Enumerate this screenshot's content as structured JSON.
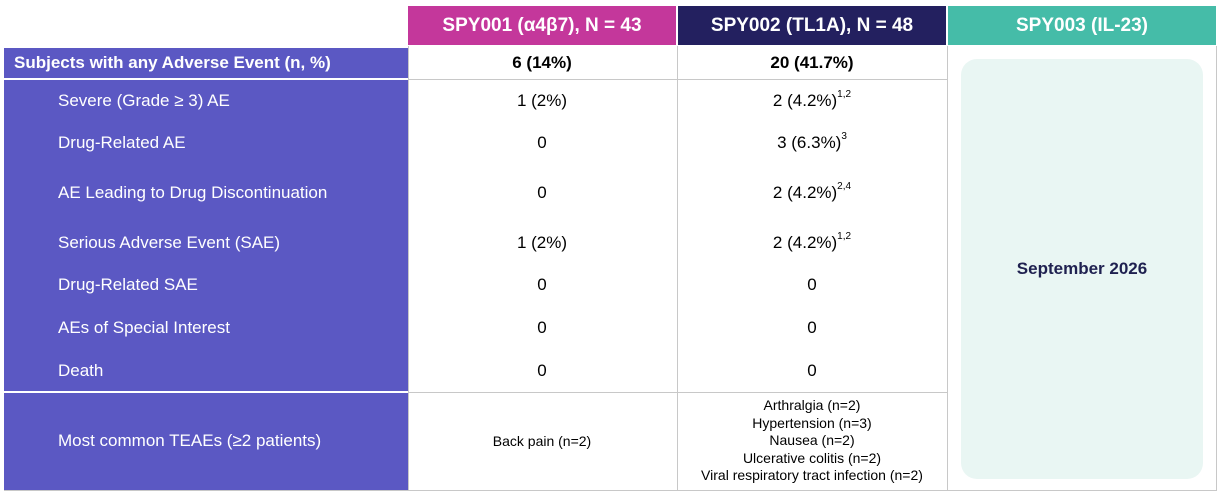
{
  "headers": {
    "spy001": "SPY001 (α4β7), N = 43",
    "spy002": "SPY002 (TL1A), N = 48",
    "spy003": "SPY003 (IL-23)"
  },
  "summary": {
    "label": "Subjects with any Adverse Event (n, %)",
    "spy001": "6 (14%)",
    "spy002": "20 (41.7%)"
  },
  "rows": [
    {
      "label": "Severe (Grade ≥ 3) AE",
      "spy001": "1 (2%)",
      "spy002": "2 (4.2%)",
      "spy002_sup": "1,2"
    },
    {
      "label": "Drug-Related AE",
      "spy001": "0",
      "spy002": "3 (6.3%)",
      "spy002_sup": "3"
    },
    {
      "label": "AE Leading to Drug Discontinuation",
      "spy001": "0",
      "spy002": "2 (4.2%)",
      "spy002_sup": "2,4"
    },
    {
      "label": "Serious Adverse Event (SAE)",
      "spy001": "1 (2%)",
      "spy002": "2 (4.2%)",
      "spy002_sup": "1,2"
    },
    {
      "label": "Drug-Related SAE",
      "spy001": "0",
      "spy002": "0"
    },
    {
      "label": "AEs of Special Interest",
      "spy001": "0",
      "spy002": "0"
    },
    {
      "label": "Death",
      "spy001": "0",
      "spy002": "0"
    }
  ],
  "teae": {
    "label": "Most common TEAEs (≥2 patients)",
    "spy001": "Back pain (n=2)",
    "spy002": [
      "Arthralgia (n=2)",
      "Hypertension (n=3)",
      "Nausea (n=2)",
      "Ulcerative colitis (n=2)",
      "Viral respiratory tract infection (n=2)"
    ]
  },
  "spy003_status": "September 2026",
  "colors": {
    "spy001_header": "#c4379b",
    "spy002_header": "#23205f",
    "spy003_header": "#45bca8",
    "row_label_bg": "#5b58c3",
    "spy003_box": "#e9f6f3"
  }
}
